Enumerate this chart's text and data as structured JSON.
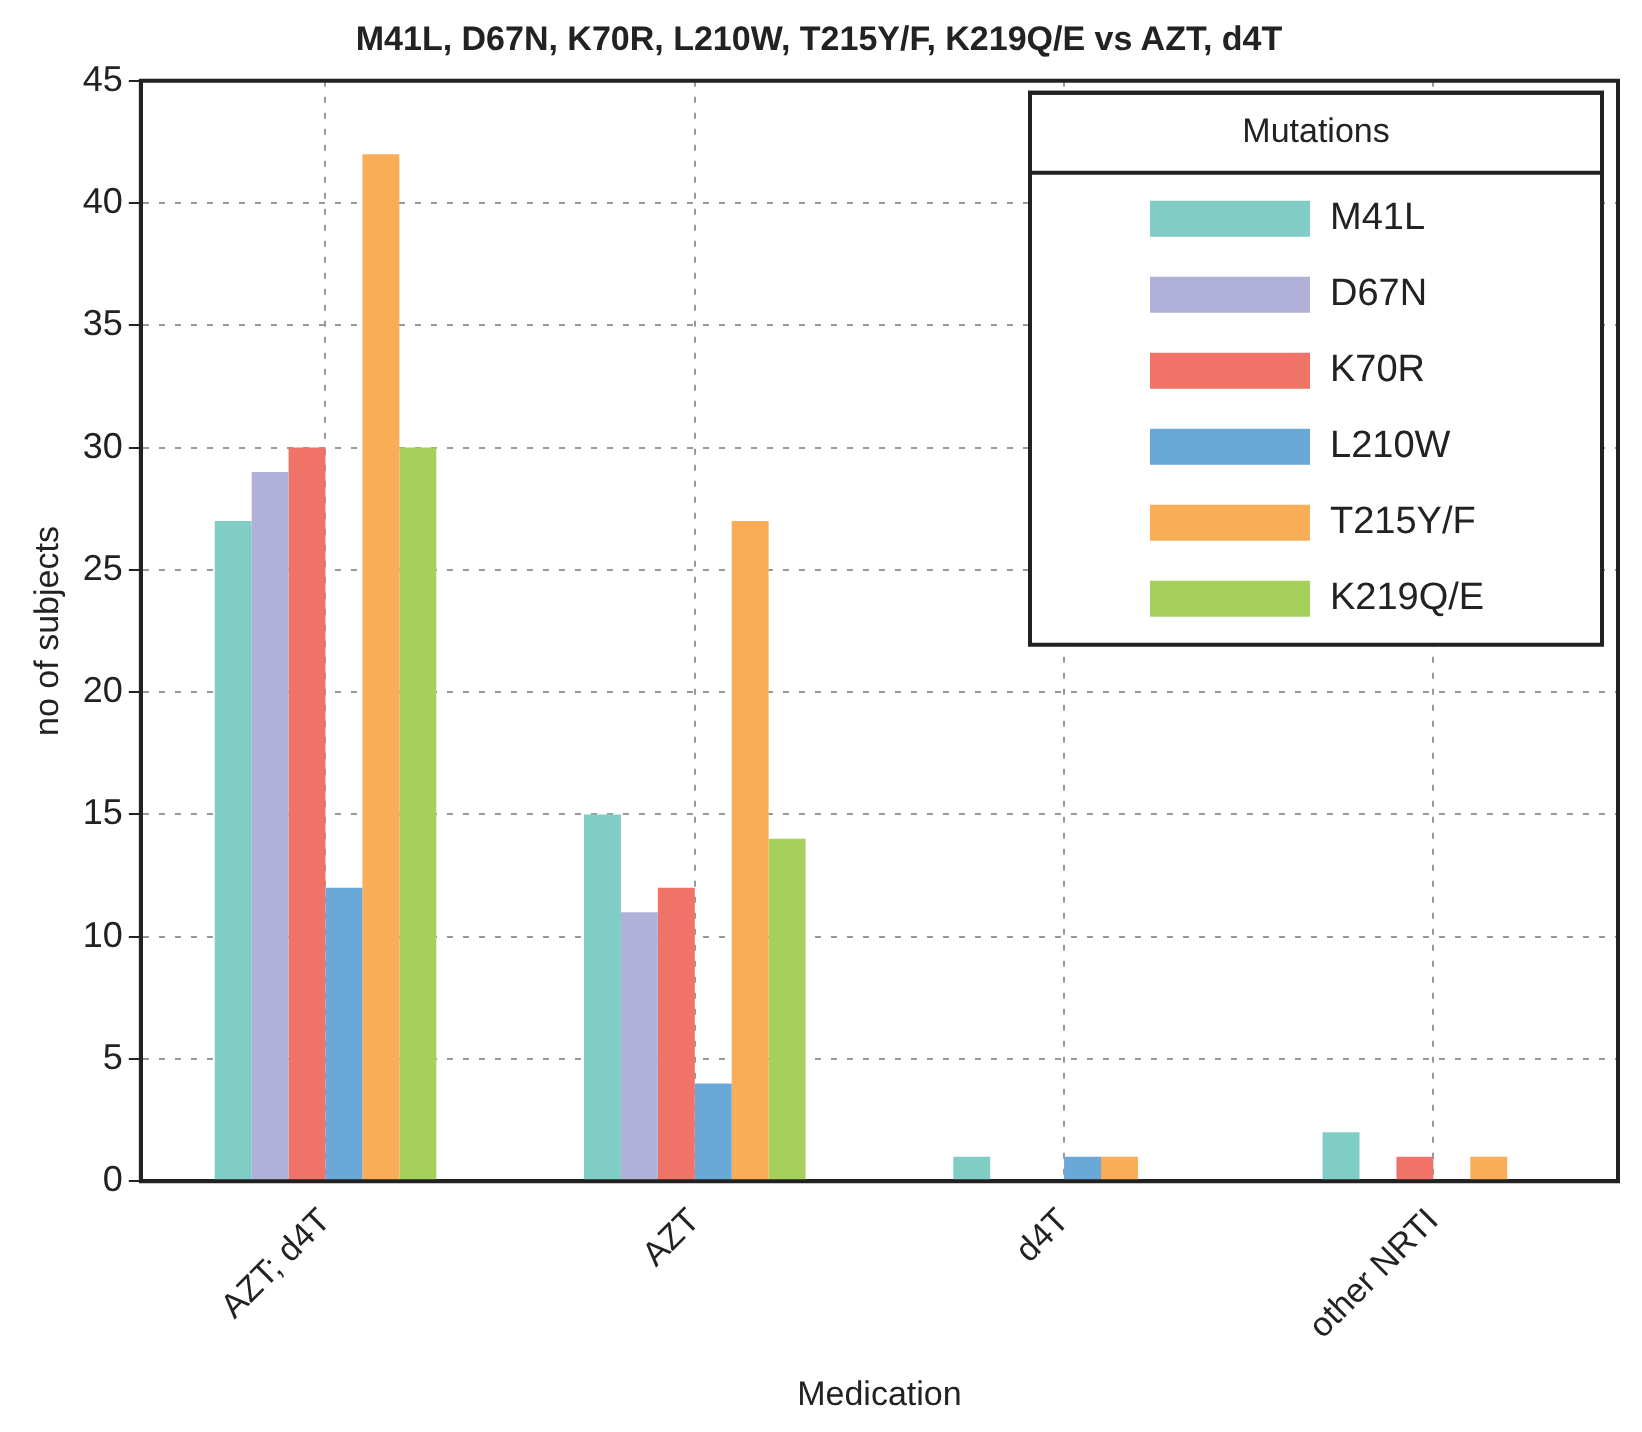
{
  "chart_data": {
    "type": "bar",
    "title": "M41L, D67N, K70R, L210W, T215Y/F, K219Q/E vs AZT, d4T",
    "xlabel": "Medication",
    "ylabel": "no of subjects",
    "legend_title": "Mutations",
    "categories": [
      "AZT; d4T",
      "AZT",
      "d4T",
      "other NRTI"
    ],
    "series": [
      {
        "name": "M41L",
        "color": "#7fcdc4",
        "values": [
          27,
          15,
          1,
          2
        ]
      },
      {
        "name": "D67N",
        "color": "#b0b0d8",
        "values": [
          29,
          11,
          0,
          0
        ]
      },
      {
        "name": "K70R",
        "color": "#ef7366",
        "values": [
          30,
          12,
          0,
          1
        ]
      },
      {
        "name": "L210W",
        "color": "#6aa8d8",
        "values": [
          12,
          4,
          1,
          0
        ]
      },
      {
        "name": "T215Y/F",
        "color": "#f8ad56",
        "values": [
          42,
          27,
          1,
          1
        ]
      },
      {
        "name": "K219Q/E",
        "color": "#a6d05c",
        "values": [
          30,
          14,
          0,
          0
        ]
      }
    ],
    "ylim": [
      0,
      45
    ],
    "yticks": [
      0,
      5,
      10,
      15,
      20,
      25,
      30,
      35,
      40,
      45
    ],
    "grid": true,
    "legend": "top right"
  }
}
